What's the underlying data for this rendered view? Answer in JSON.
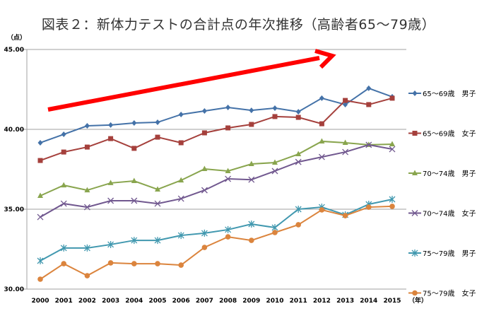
{
  "chart_data": {
    "type": "line",
    "title": "図表２：新体力テストの合計点の年次推移（高齢者65～79歳）",
    "ylabel": "（点）",
    "xlabel": "（年）",
    "ylim": [
      30,
      45
    ],
    "yticks": [
      "30.00",
      "35.00",
      "40.00",
      "45.00"
    ],
    "grid": true,
    "legend": "right",
    "x": [
      "2000",
      "2001",
      "2002",
      "2003",
      "2004",
      "2005",
      "2006",
      "2007",
      "2008",
      "2009",
      "2010",
      "2011",
      "2012",
      "2013",
      "2014",
      "2015"
    ],
    "series": [
      {
        "name": "65～69歳　男子",
        "color": "#4472A8",
        "marker": "diamond",
        "values": [
          39.16,
          39.69,
          40.22,
          40.27,
          40.4,
          40.44,
          40.93,
          41.15,
          41.37,
          41.19,
          41.33,
          41.1,
          41.95,
          41.55,
          42.57,
          42.04
        ]
      },
      {
        "name": "65～69歳　女子",
        "color": "#A5403C",
        "marker": "square",
        "values": [
          38.05,
          38.58,
          38.89,
          39.42,
          38.81,
          39.51,
          39.16,
          39.78,
          40.09,
          40.31,
          40.8,
          40.75,
          40.35,
          41.81,
          41.55,
          41.95
        ]
      },
      {
        "name": "70～74歳　男子",
        "color": "#89A54E",
        "marker": "triangle",
        "values": [
          35.84,
          36.5,
          36.19,
          36.64,
          36.77,
          36.24,
          36.81,
          37.52,
          37.39,
          37.83,
          37.92,
          38.45,
          39.25,
          39.16,
          39.03,
          39.07
        ]
      },
      {
        "name": "70～74歳　女子",
        "color": "#71588F",
        "marker": "x",
        "values": [
          34.51,
          35.35,
          35.13,
          35.53,
          35.53,
          35.35,
          35.66,
          36.19,
          36.9,
          36.85,
          37.39,
          37.96,
          38.27,
          38.58,
          39.03,
          38.76
        ]
      },
      {
        "name": "75～79歳　男子",
        "color": "#4198AF",
        "marker": "star",
        "values": [
          31.77,
          32.57,
          32.57,
          32.79,
          33.05,
          33.05,
          33.36,
          33.5,
          33.72,
          34.07,
          33.85,
          35.0,
          35.13,
          34.65,
          35.31,
          35.62
        ]
      },
      {
        "name": "75～79歳　女子",
        "color": "#DB843D",
        "marker": "circle",
        "values": [
          30.62,
          31.59,
          30.84,
          31.64,
          31.59,
          31.59,
          31.5,
          32.61,
          33.27,
          33.05,
          33.54,
          34.03,
          34.96,
          34.6,
          35.13,
          35.18
        ]
      }
    ],
    "annotation": {
      "type": "arrow",
      "color": "#FF0000",
      "direction": "upward trend"
    }
  }
}
